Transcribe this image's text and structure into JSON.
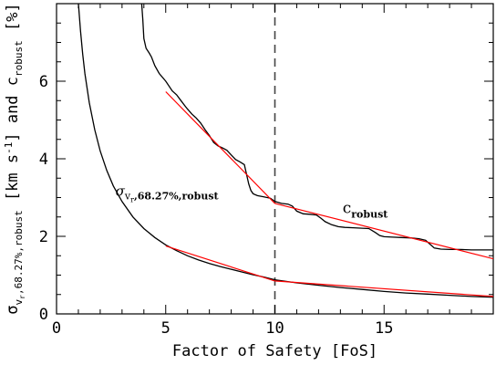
{
  "chart_data": {
    "type": "line",
    "xlabel": "Factor of Safety [FoS]",
    "ylabel": {
      "sigma_sym": "σ",
      "sigma_sub": "v",
      "sigma_subsub": "r",
      "sigma_sub_rest": ",68.27%,robust",
      "units": " [km s",
      "units_exp": "-1",
      "and": "] and c",
      "c_sub": "robust",
      "percent": " [%]"
    },
    "xlim": [
      0,
      20
    ],
    "ylim": [
      0,
      8
    ],
    "xticks": [
      "0",
      "5",
      "10",
      "15"
    ],
    "yticks": [
      "0",
      "2",
      "4",
      "6"
    ],
    "xtick_values": [
      0,
      5,
      10,
      15
    ],
    "ytick_values": [
      0,
      2,
      4,
      6
    ],
    "vline_x": 10,
    "annotations": {
      "sigma": {
        "sym": "σ",
        "sub": "v",
        "subsub": "r",
        "rest": ",68.27%,robust",
        "x": 2.7,
        "y": 3.05
      },
      "c": {
        "sym": "c",
        "sub": "robust",
        "x": 13.1,
        "y": 2.6
      }
    },
    "series": [
      {
        "color": "#000000",
        "points": [
          [
            1.0,
            8.0
          ],
          [
            1.1,
            7.3
          ],
          [
            1.2,
            6.7
          ],
          [
            1.3,
            6.2
          ],
          [
            1.5,
            5.45
          ],
          [
            1.75,
            4.75
          ],
          [
            2.0,
            4.2
          ],
          [
            2.3,
            3.7
          ],
          [
            2.6,
            3.3
          ],
          [
            3.0,
            2.9
          ],
          [
            3.5,
            2.5
          ],
          [
            4.0,
            2.2
          ],
          [
            4.5,
            1.97
          ],
          [
            5.0,
            1.78
          ],
          [
            5.5,
            1.63
          ],
          [
            6.0,
            1.5
          ],
          [
            6.5,
            1.39
          ],
          [
            7.0,
            1.3
          ],
          [
            7.5,
            1.22
          ],
          [
            8.0,
            1.15
          ],
          [
            8.5,
            1.08
          ],
          [
            9.0,
            1.01
          ],
          [
            9.5,
            0.95
          ],
          [
            10.0,
            0.88
          ],
          [
            11.0,
            0.8
          ],
          [
            12.0,
            0.74
          ],
          [
            13.0,
            0.68
          ],
          [
            14.0,
            0.63
          ],
          [
            15.0,
            0.58
          ],
          [
            16.0,
            0.54
          ],
          [
            17.0,
            0.51
          ],
          [
            18.0,
            0.48
          ],
          [
            19.0,
            0.45
          ],
          [
            20.0,
            0.43
          ]
        ]
      },
      {
        "color": "#000000",
        "points": [
          [
            3.9,
            8.0
          ],
          [
            3.95,
            7.6
          ],
          [
            4.0,
            7.1
          ],
          [
            4.1,
            6.85
          ],
          [
            4.25,
            6.72
          ],
          [
            4.35,
            6.62
          ],
          [
            4.5,
            6.4
          ],
          [
            4.7,
            6.2
          ],
          [
            5.0,
            6.0
          ],
          [
            5.3,
            5.75
          ],
          [
            5.5,
            5.65
          ],
          [
            5.7,
            5.5
          ],
          [
            5.9,
            5.35
          ],
          [
            6.0,
            5.28
          ],
          [
            6.2,
            5.15
          ],
          [
            6.4,
            5.05
          ],
          [
            6.6,
            4.92
          ],
          [
            6.8,
            4.75
          ],
          [
            7.0,
            4.6
          ],
          [
            7.2,
            4.42
          ],
          [
            7.4,
            4.33
          ],
          [
            7.6,
            4.28
          ],
          [
            7.8,
            4.22
          ],
          [
            8.0,
            4.1
          ],
          [
            8.2,
            3.98
          ],
          [
            8.4,
            3.92
          ],
          [
            8.6,
            3.85
          ],
          [
            8.7,
            3.6
          ],
          [
            8.8,
            3.35
          ],
          [
            8.9,
            3.18
          ],
          [
            9.0,
            3.1
          ],
          [
            9.2,
            3.05
          ],
          [
            9.5,
            3.02
          ],
          [
            9.8,
            2.98
          ],
          [
            10.0,
            2.9
          ],
          [
            10.3,
            2.85
          ],
          [
            10.6,
            2.83
          ],
          [
            10.8,
            2.78
          ],
          [
            11.0,
            2.65
          ],
          [
            11.3,
            2.58
          ],
          [
            11.6,
            2.57
          ],
          [
            11.9,
            2.55
          ],
          [
            12.1,
            2.47
          ],
          [
            12.3,
            2.38
          ],
          [
            12.6,
            2.3
          ],
          [
            12.9,
            2.25
          ],
          [
            13.2,
            2.23
          ],
          [
            13.6,
            2.22
          ],
          [
            14.0,
            2.21
          ],
          [
            14.3,
            2.2
          ],
          [
            14.6,
            2.1
          ],
          [
            14.8,
            2.02
          ],
          [
            15.0,
            1.99
          ],
          [
            15.4,
            1.98
          ],
          [
            15.8,
            1.97
          ],
          [
            16.2,
            1.96
          ],
          [
            16.6,
            1.94
          ],
          [
            16.9,
            1.9
          ],
          [
            17.1,
            1.8
          ],
          [
            17.3,
            1.7
          ],
          [
            17.6,
            1.67
          ],
          [
            18.0,
            1.66
          ],
          [
            18.5,
            1.66
          ],
          [
            19.0,
            1.65
          ],
          [
            19.5,
            1.65
          ],
          [
            20.0,
            1.65
          ]
        ]
      },
      {
        "color": "#ff0000",
        "points": [
          [
            5.0,
            5.73
          ],
          [
            10.0,
            2.85
          ]
        ]
      },
      {
        "color": "#ff0000",
        "points": [
          [
            10.0,
            2.85
          ],
          [
            20.0,
            1.42
          ]
        ]
      },
      {
        "color": "#ff0000",
        "points": [
          [
            5.0,
            1.75
          ],
          [
            10.0,
            0.85
          ]
        ]
      },
      {
        "color": "#ff0000",
        "points": [
          [
            10.0,
            0.85
          ],
          [
            20.0,
            0.45
          ]
        ]
      }
    ]
  }
}
